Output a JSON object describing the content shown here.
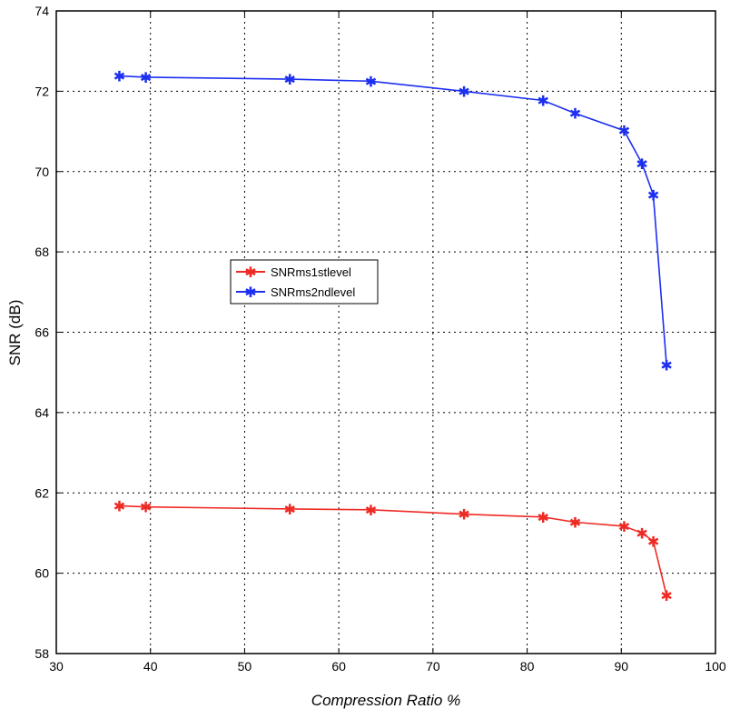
{
  "chart_data": {
    "type": "line",
    "title": "",
    "xlabel": "Compression Ratio %",
    "ylabel": "SNR (dB)",
    "xlim": [
      30,
      100
    ],
    "ylim": [
      58,
      74
    ],
    "xticks": [
      "30",
      "40",
      "50",
      "60",
      "70",
      "80",
      "90",
      "100"
    ],
    "yticks": [
      "58",
      "60",
      "62",
      "64",
      "66",
      "68",
      "70",
      "72",
      "74"
    ],
    "grid": true,
    "legend_position": "center-left",
    "x": [
      36.7,
      39.5,
      54.8,
      63.4,
      73.3,
      81.7,
      85.1,
      90.3,
      92.2,
      93.4,
      94.8
    ],
    "series": [
      {
        "name": "SNRms1stlevel",
        "color": "#ee2a24",
        "marker": "asterisk",
        "values": [
          61.68,
          61.65,
          61.6,
          61.58,
          61.47,
          61.4,
          61.27,
          61.17,
          61.0,
          60.8,
          59.45
        ]
      },
      {
        "name": "SNRms2ndlevel",
        "color": "#1d2ff0",
        "marker": "asterisk",
        "values": [
          72.38,
          72.35,
          72.3,
          72.25,
          72.0,
          71.77,
          71.45,
          71.02,
          70.2,
          69.42,
          65.18
        ]
      }
    ]
  }
}
